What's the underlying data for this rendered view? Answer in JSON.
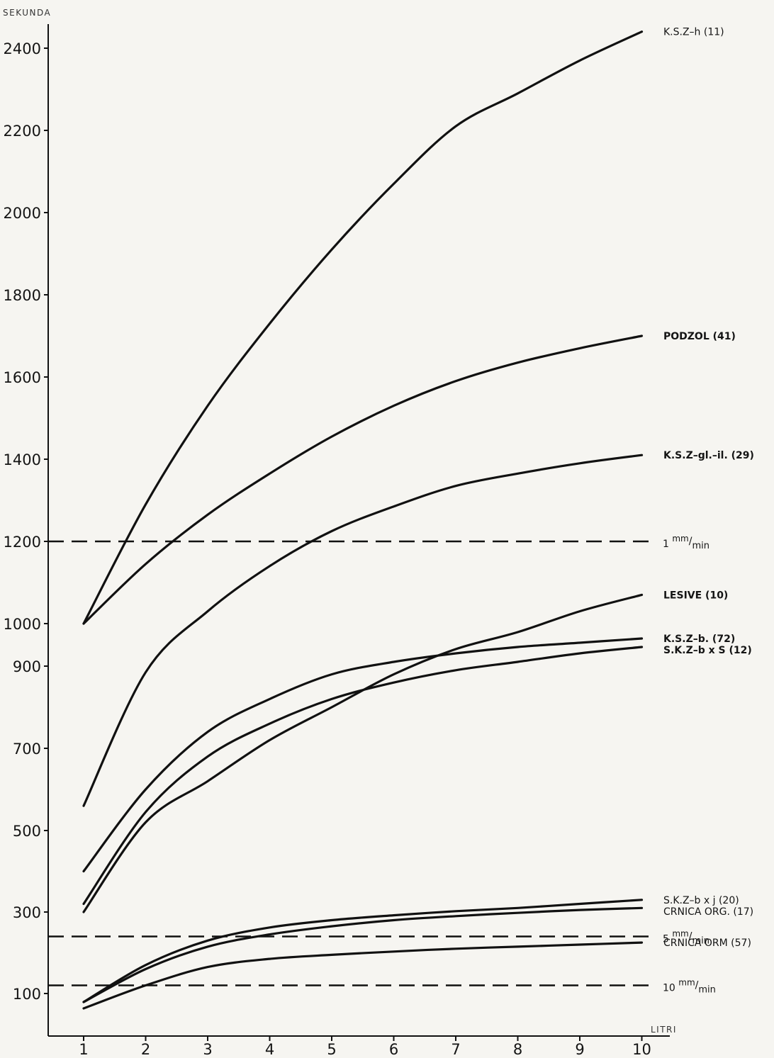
{
  "chart_data": {
    "type": "line",
    "ylabel": "SEKUNDA",
    "xlabel": "LITRI",
    "x": [
      1,
      2,
      3,
      4,
      5,
      6,
      7,
      8,
      9,
      10
    ],
    "x_ticks": [
      "1",
      "2",
      "3",
      "4",
      "5",
      "6",
      "7",
      "8",
      "9",
      "10"
    ],
    "y_ticks": [
      "100",
      "300",
      "500",
      "700",
      "900",
      "1000",
      "1200",
      "1400",
      "1600",
      "1800",
      "2000",
      "2200",
      "2400"
    ],
    "y_tick_values": [
      100,
      300,
      500,
      700,
      900,
      1000,
      1200,
      1400,
      1600,
      1800,
      2000,
      2200,
      2400
    ],
    "ylim": [
      0,
      2520
    ],
    "xlim": [
      0.5,
      10.3
    ],
    "grid": false,
    "series": [
      {
        "name": "K.S.Z-h (11)",
        "values": [
          1000,
          1290,
          1530,
          1730,
          1910,
          2070,
          2210,
          2290,
          2370,
          2440
        ]
      },
      {
        "name": "PODZOL (41)",
        "values": [
          1000,
          1145,
          1265,
          1365,
          1455,
          1530,
          1590,
          1635,
          1670,
          1700
        ]
      },
      {
        "name": "K.S.Z-gl.-il. (29)",
        "values": [
          560,
          885,
          1030,
          1140,
          1225,
          1285,
          1335,
          1365,
          1390,
          1410
        ]
      },
      {
        "name": "LESIVE (10)",
        "values": [
          300,
          520,
          620,
          720,
          800,
          880,
          940,
          980,
          1030,
          1070
        ]
      },
      {
        "name": "K.S.Z-b. (72)",
        "values": [
          400,
          600,
          740,
          820,
          880,
          910,
          930,
          945,
          955,
          965
        ]
      },
      {
        "name": "S.K.Z-b x S (12)",
        "values": [
          320,
          545,
          680,
          760,
          820,
          860,
          890,
          910,
          930,
          945
        ]
      },
      {
        "name": "S.K.Z-b x j (20)",
        "values": [
          80,
          170,
          230,
          262,
          280,
          292,
          302,
          310,
          320,
          330
        ]
      },
      {
        "name": "CRNICA ORG. (17)",
        "values": [
          80,
          160,
          215,
          245,
          265,
          280,
          290,
          298,
          305,
          310
        ]
      },
      {
        "name": "CRNICA ORM (57)",
        "values": [
          65,
          120,
          165,
          185,
          195,
          203,
          210,
          215,
          220,
          225
        ]
      }
    ],
    "series_labels": [
      {
        "text": "K.S.Z–h (11)",
        "bold": false
      },
      {
        "text": "PODZOL (41)",
        "bold": true
      },
      {
        "text": "K.S.Z–gl.–il. (29)",
        "bold": true
      },
      {
        "text": "LESIVE (10)",
        "bold": true
      },
      {
        "text": "K.S.Z–b. (72)",
        "bold": true
      },
      {
        "text": "S.K.Z–b x S (12)",
        "bold": true
      },
      {
        "text": "S.K.Z–b x j (20)",
        "bold": false
      },
      {
        "text": "CRNICA ORG. (17)",
        "bold": false
      },
      {
        "text": "CRNICA ORM (57)",
        "bold": false
      }
    ],
    "reference_lines": [
      {
        "y": 1200,
        "label_prefix": "1",
        "label_unit_top": "mm",
        "label_unit_bottom": "min"
      },
      {
        "y": 240,
        "label_prefix": "5",
        "label_unit_top": "mm",
        "label_unit_bottom": "min"
      },
      {
        "y": 120,
        "label_prefix": "10",
        "label_unit_top": "mm",
        "label_unit_bottom": "min"
      }
    ],
    "notes": "Y axis is non-linear: 200 units per major tick above 1000, 200 units per tick below 900; the segment 900-1000 is compressed into the same spacing as the others."
  }
}
